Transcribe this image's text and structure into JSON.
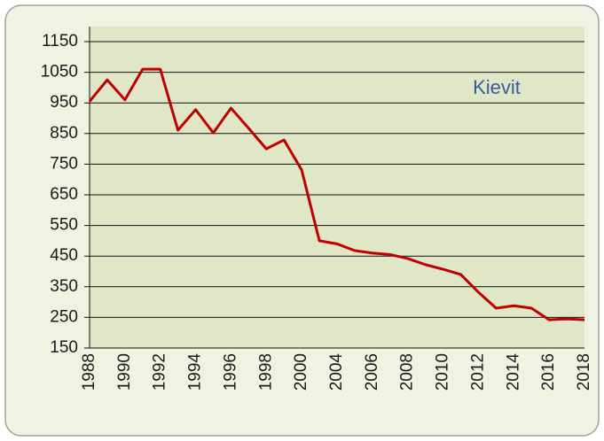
{
  "chart_data": {
    "type": "line",
    "categories": [
      "1988",
      null,
      "1990",
      null,
      "1992",
      null,
      "1994",
      null,
      "1996",
      null,
      "1998",
      null,
      "2000",
      null,
      "2004",
      null,
      "2006",
      null,
      "2008",
      null,
      "2010",
      null,
      "2012",
      null,
      "2014",
      null,
      "2016",
      null,
      "2018"
    ],
    "series": [
      {
        "name": "Kievit",
        "color": "#c00000",
        "values": [
          955,
          1025,
          960,
          1060,
          1060,
          861,
          928,
          852,
          933,
          867,
          800,
          829,
          731,
          500,
          490,
          468,
          460,
          455,
          442,
          422,
          407,
          390,
          332,
          280,
          288,
          280,
          242,
          245,
          242
        ]
      }
    ],
    "ylim": [
      150,
      1150
    ],
    "yticks": [
      150,
      250,
      350,
      450,
      550,
      650,
      750,
      850,
      950,
      1050,
      1150
    ],
    "grid": true
  }
}
